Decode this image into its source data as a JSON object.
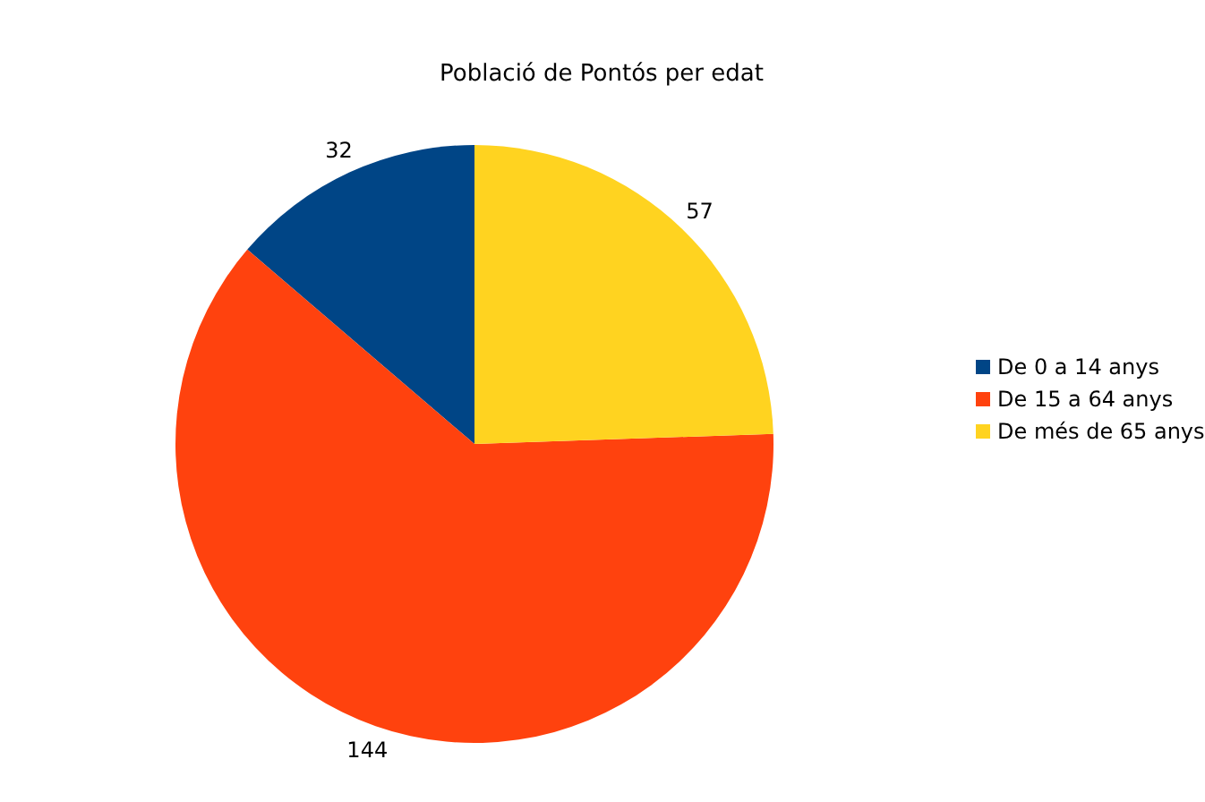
{
  "chart_data": {
    "type": "pie",
    "title": "Població de Pontós per edat",
    "categories": [
      "De 0 a 14 anys",
      "De 15 a 64 anys",
      "De més de 65 anys"
    ],
    "values": [
      32,
      144,
      57
    ],
    "colors": [
      "#004586",
      "#ff420e",
      "#ffd320"
    ],
    "data_labels": true,
    "legend": "right"
  }
}
